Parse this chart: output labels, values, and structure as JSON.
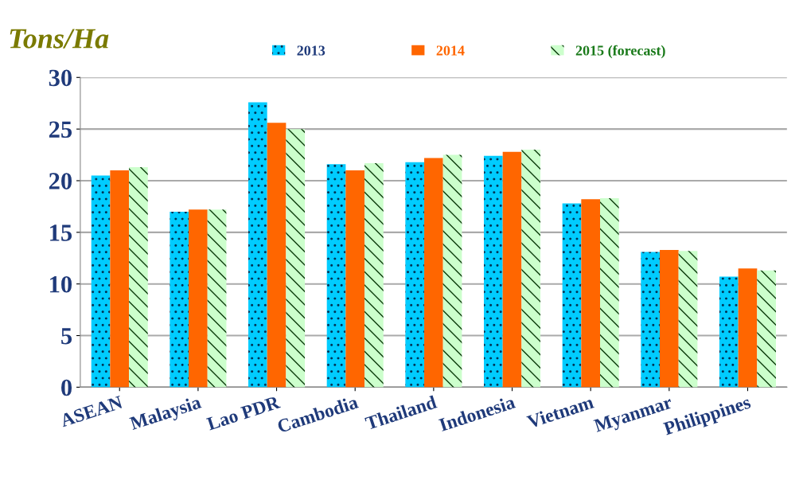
{
  "chart_data": {
    "type": "bar",
    "ylabel": "Tons/Ha",
    "categories": [
      "ASEAN",
      "Malaysia",
      "Lao PDR",
      "Cambodia",
      "Thailand",
      "Indonesia",
      "Vietnam",
      "Myanmar",
      "Philippines"
    ],
    "series": [
      {
        "name": "2013",
        "color": "#00ccff",
        "values": [
          20.5,
          17.0,
          27.6,
          21.6,
          21.8,
          22.4,
          17.8,
          13.1,
          10.7
        ]
      },
      {
        "name": "2014",
        "color": "#ff6600",
        "values": [
          21.0,
          17.2,
          25.6,
          21.0,
          22.2,
          22.8,
          18.2,
          13.3,
          11.5
        ]
      },
      {
        "name": "2015 (forecast)",
        "color": "#ccffcc",
        "values": [
          21.3,
          17.2,
          25.0,
          21.7,
          22.5,
          23.0,
          18.3,
          13.2,
          11.3
        ]
      }
    ],
    "ylim": [
      0,
      30
    ],
    "yticks": [
      0,
      5,
      10,
      15,
      20,
      25,
      30
    ],
    "grid": "y",
    "legend": "top"
  }
}
